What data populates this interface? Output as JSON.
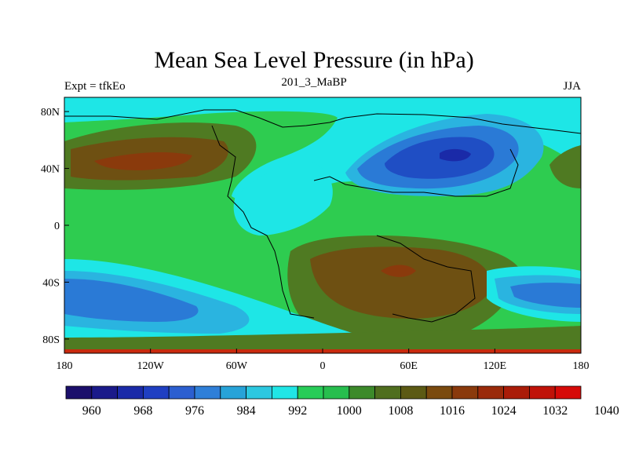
{
  "title": "Mean Sea Level Pressure (in hPa)",
  "left_label": "Expt = tfkEo",
  "center_label": "201_3_MaBP",
  "right_label": "JJA",
  "x_ticks": [
    {
      "value": -180,
      "label": "180"
    },
    {
      "value": -120,
      "label": "120W"
    },
    {
      "value": -60,
      "label": "60W"
    },
    {
      "value": 0,
      "label": "0"
    },
    {
      "value": 60,
      "label": "60E"
    },
    {
      "value": 120,
      "label": "120E"
    },
    {
      "value": 180,
      "label": "180"
    }
  ],
  "y_ticks": [
    {
      "value": 80,
      "label": "80N"
    },
    {
      "value": 40,
      "label": "40N"
    },
    {
      "value": 0,
      "label": "0"
    },
    {
      "value": -40,
      "label": "40S"
    },
    {
      "value": -80,
      "label": "80S"
    }
  ],
  "colorbar": {
    "colors": [
      "#1b0f6b",
      "#1a1a8a",
      "#1a2aa8",
      "#1f3fc2",
      "#2c5fd0",
      "#2f7fd8",
      "#27a3d8",
      "#2cc8e0",
      "#20e6e6",
      "#28cc58",
      "#27be4e",
      "#3c8a2a",
      "#4f6e1e",
      "#5c5a14",
      "#7a4a0e",
      "#8a3a0c",
      "#9a2a0a",
      "#aa1c08",
      "#c01208",
      "#d60a08"
    ],
    "labels": [
      "960",
      "968",
      "976",
      "984",
      "992",
      "1000",
      "1008",
      "1016",
      "1024",
      "1032",
      "1040"
    ]
  },
  "field_colors": {
    "background": "#2ecc50",
    "cyan": "#1ee6e6",
    "light_blue": "#2ab4e0",
    "mid_blue": "#2a7ad6",
    "dark_blue": "#1f4ec4",
    "navy": "#1a2aa8",
    "olive": "#4f7a22",
    "brown": "#6e5012",
    "dark_brown": "#8a3a0c",
    "red_strip": "#c82a0e"
  }
}
